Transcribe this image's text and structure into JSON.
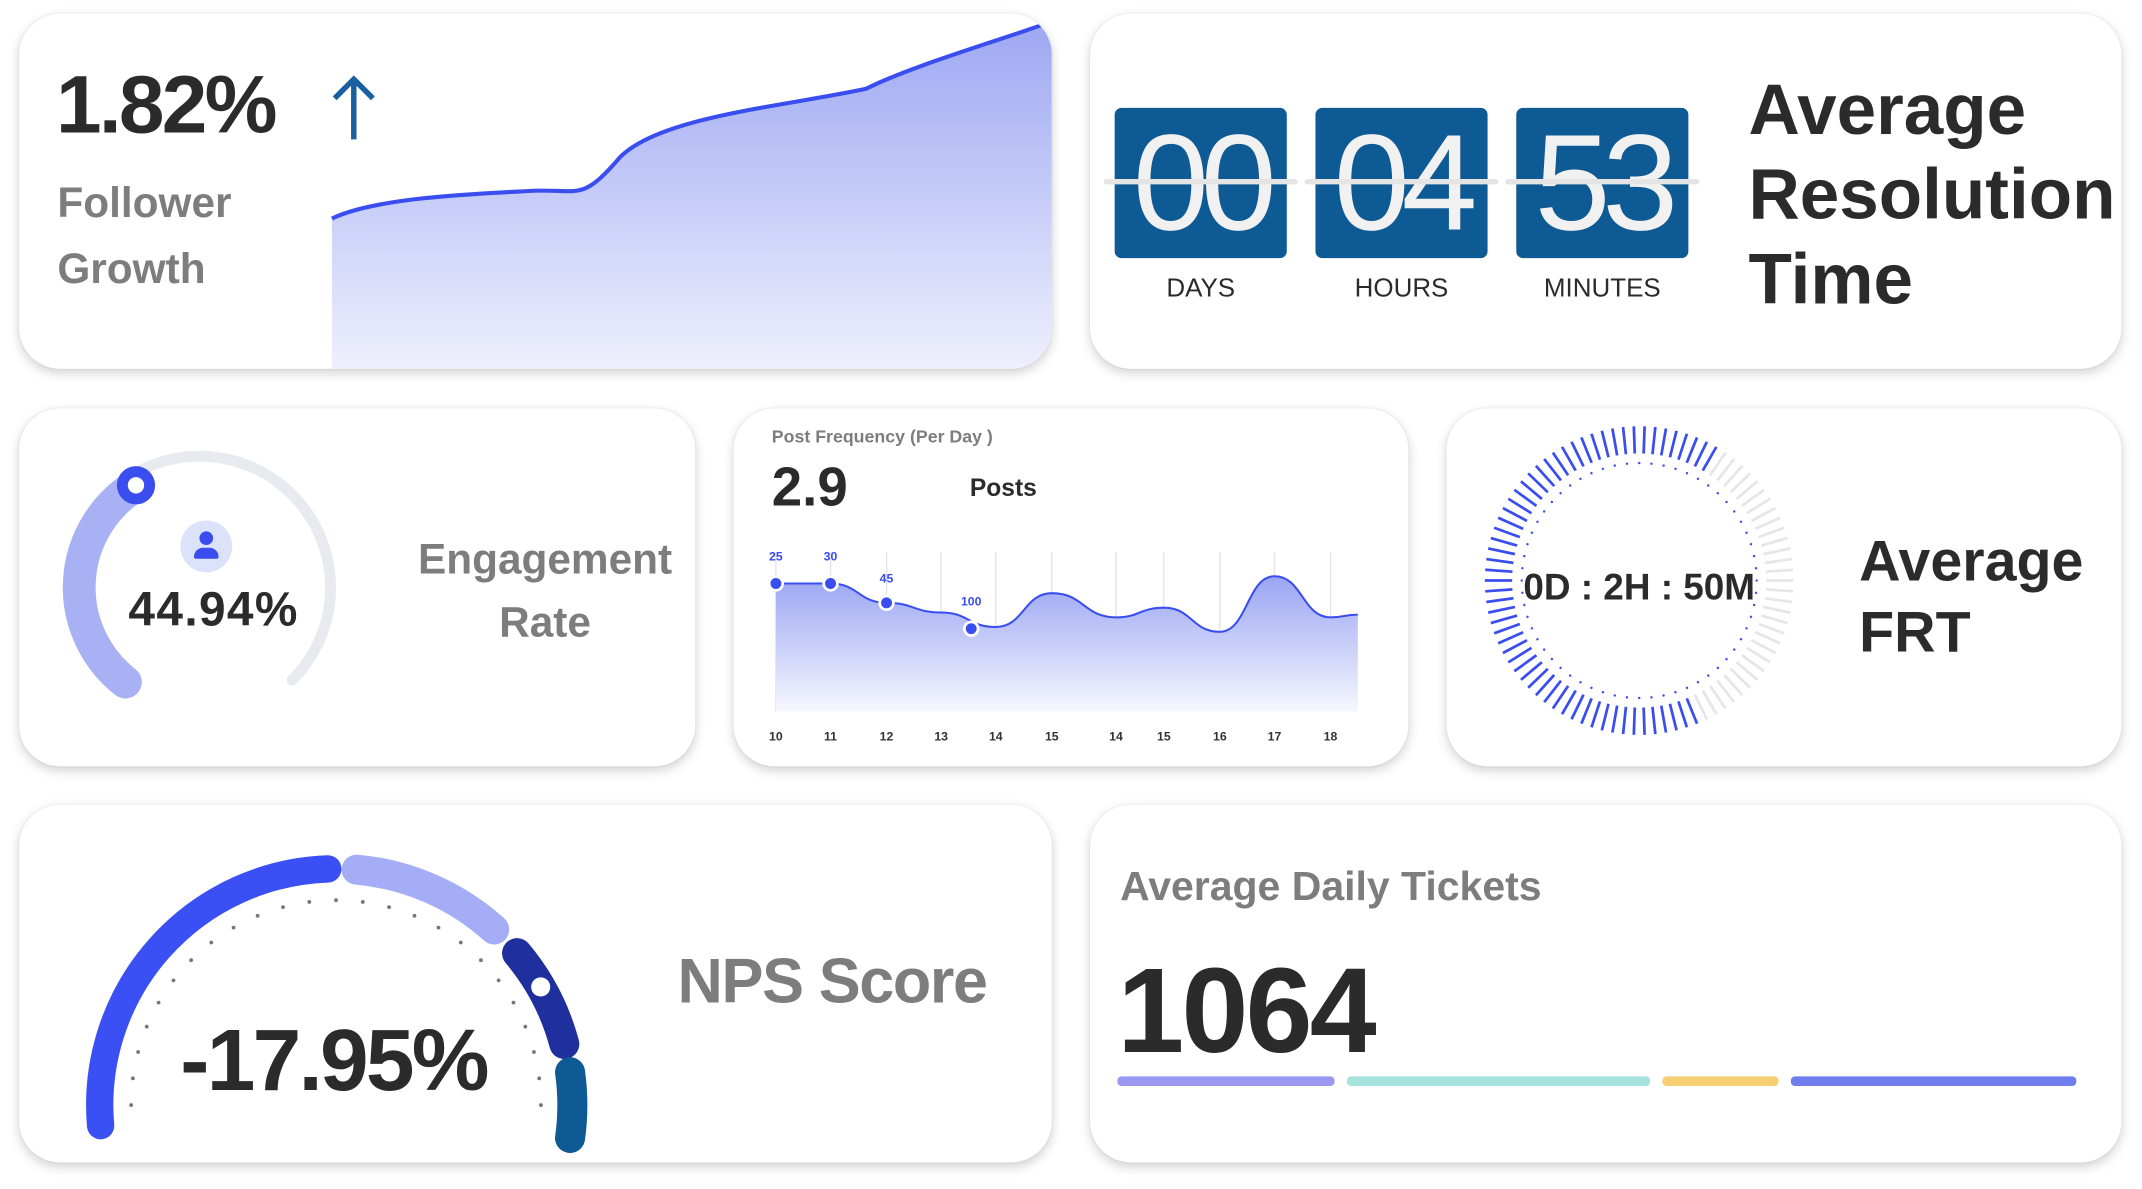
{
  "follower_growth": {
    "value": "1.82%",
    "trend_icon": "arrow-up-icon",
    "label_line1": "Follower",
    "label_line2": "Growth",
    "color": "#3a4ef0"
  },
  "resolution_time": {
    "units": [
      {
        "value": "00",
        "label": "DAYS"
      },
      {
        "value": "04",
        "label": "HOURS"
      },
      {
        "value": "53",
        "label": "MINUTES"
      }
    ],
    "title_line1": "Average",
    "title_line2": "Resolution",
    "title_line3": "Time",
    "tile_color": "#0d5a94"
  },
  "engagement": {
    "value": "44.94%",
    "fill_fraction": 0.4494,
    "label_line1": "Engagement",
    "label_line2": "Rate",
    "icon": "user-icon",
    "color": "#3a4ef0"
  },
  "post_frequency": {
    "title": "Post Frequency (Per Day )",
    "value": "2.9",
    "unit": "Posts",
    "chart_data": {
      "type": "area",
      "categories": [
        "10",
        "11",
        "12",
        "13",
        "14",
        "15",
        "14",
        "15",
        "16",
        "17",
        "18"
      ],
      "annotations": [
        {
          "index": 0,
          "label": "25"
        },
        {
          "index": 1,
          "label": "30"
        },
        {
          "index": 2,
          "label": "45"
        },
        {
          "index": 3.55,
          "label": "100"
        }
      ],
      "values": [
        70,
        70,
        62,
        58,
        52,
        66,
        56,
        60,
        50,
        73,
        56
      ],
      "grid": true
    }
  },
  "frt": {
    "value": "0D : 2H : 50M",
    "label_line1": "Average",
    "label_line2": "FRT",
    "progress_fraction": 0.65
  },
  "nps": {
    "value": "-17.95%",
    "label": "NPS Score",
    "segment_colors": [
      "#3a50f5",
      "#a5adf7",
      "#1f2f9e",
      "#0d5a94"
    ]
  },
  "daily_tickets": {
    "title": "Average Daily Tickets",
    "value": "1064",
    "segments": [
      {
        "share": 0.235,
        "color": "#9a98f0"
      },
      {
        "share": 0.33,
        "color": "#a6e3df"
      },
      {
        "share": 0.125,
        "color": "#f5cf72"
      },
      {
        "share": 0.31,
        "color": "#6f7ded"
      }
    ]
  }
}
